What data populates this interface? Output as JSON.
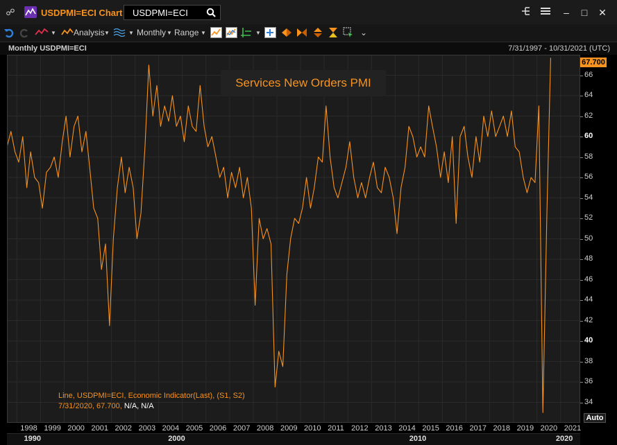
{
  "app": {
    "title": "USDPMI=ECI Chart",
    "search_value": "USDPMI=ECI"
  },
  "toolbar": {
    "analysis_label": "Analysis",
    "interval_label": "Monthly",
    "range_label": "Range"
  },
  "chart_header": {
    "left": "Monthly USDPMI=ECI",
    "right": "7/31/1997 - 10/31/2021 (UTC)"
  },
  "last_value_badge": "67.700",
  "auto_button": "Auto",
  "legend": {
    "line1": "Line, USDPMI=ECI, Economic Indicator(Last), (S1, S2)",
    "line2_date_value": "7/31/2020, 67.700,",
    "line2_na": "N/A, N/A"
  },
  "colors": {
    "accent": "#f7931e",
    "background": "#000000",
    "grid": "#2a2a2a"
  },
  "chart_data": {
    "type": "line",
    "title": "Services New Orders PMI",
    "series": [
      {
        "name": "USDPMI=ECI",
        "color": "#f7931e"
      }
    ],
    "ylim": [
      32,
      68
    ],
    "yticks": [
      "66",
      "64",
      "62",
      "60",
      "58",
      "56",
      "54",
      "52",
      "50",
      "48",
      "46",
      "44",
      "42",
      "40",
      "38",
      "36",
      "34"
    ],
    "ytick_bold": [
      "60",
      "40"
    ],
    "xlim": [
      1997.58,
      2021.83
    ],
    "xticks": [
      "1998",
      "1999",
      "2000",
      "2001",
      "2002",
      "2003",
      "2004",
      "2005",
      "2006",
      "2007",
      "2008",
      "2009",
      "2010",
      "2011",
      "2012",
      "2013",
      "2014",
      "2015",
      "2016",
      "2017",
      "2018",
      "2019",
      "2020",
      "2021"
    ],
    "decade_labels": [
      {
        "label": "1990",
        "year": 1998.3
      },
      {
        "label": "2000",
        "year": 2004.4
      },
      {
        "label": "2010",
        "year": 2014.6
      },
      {
        "label": "2020",
        "year": 2020.8
      }
    ],
    "points": [
      [
        1997.58,
        59.0
      ],
      [
        1997.75,
        60.5
      ],
      [
        1997.92,
        58.5
      ],
      [
        1998.08,
        57.5
      ],
      [
        1998.25,
        60.0
      ],
      [
        1998.42,
        55.0
      ],
      [
        1998.58,
        58.5
      ],
      [
        1998.75,
        56.0
      ],
      [
        1998.92,
        55.5
      ],
      [
        1999.08,
        53.0
      ],
      [
        1999.25,
        56.5
      ],
      [
        1999.42,
        57.0
      ],
      [
        1999.58,
        58.0
      ],
      [
        1999.75,
        56.0
      ],
      [
        1999.92,
        59.5
      ],
      [
        2000.08,
        62.0
      ],
      [
        2000.25,
        58.0
      ],
      [
        2000.42,
        61.0
      ],
      [
        2000.58,
        62.0
      ],
      [
        2000.75,
        58.5
      ],
      [
        2000.92,
        60.5
      ],
      [
        2001.08,
        57.0
      ],
      [
        2001.25,
        53.0
      ],
      [
        2001.42,
        52.0
      ],
      [
        2001.58,
        47.0
      ],
      [
        2001.75,
        49.5
      ],
      [
        2001.92,
        41.5
      ],
      [
        2002.08,
        50.0
      ],
      [
        2002.25,
        55.0
      ],
      [
        2002.42,
        58.0
      ],
      [
        2002.58,
        54.5
      ],
      [
        2002.75,
        57.0
      ],
      [
        2002.92,
        55.0
      ],
      [
        2003.08,
        50.0
      ],
      [
        2003.25,
        52.5
      ],
      [
        2003.42,
        59.0
      ],
      [
        2003.58,
        67.0
      ],
      [
        2003.75,
        62.0
      ],
      [
        2003.92,
        65.0
      ],
      [
        2004.08,
        61.0
      ],
      [
        2004.25,
        63.0
      ],
      [
        2004.42,
        61.5
      ],
      [
        2004.58,
        64.0
      ],
      [
        2004.75,
        61.0
      ],
      [
        2004.92,
        62.0
      ],
      [
        2005.08,
        59.5
      ],
      [
        2005.25,
        63.0
      ],
      [
        2005.42,
        61.0
      ],
      [
        2005.58,
        60.5
      ],
      [
        2005.75,
        65.0
      ],
      [
        2005.92,
        61.0
      ],
      [
        2006.08,
        59.0
      ],
      [
        2006.25,
        60.0
      ],
      [
        2006.42,
        58.0
      ],
      [
        2006.58,
        56.0
      ],
      [
        2006.75,
        57.0
      ],
      [
        2006.92,
        54.0
      ],
      [
        2007.08,
        56.5
      ],
      [
        2007.25,
        55.0
      ],
      [
        2007.42,
        57.0
      ],
      [
        2007.58,
        54.0
      ],
      [
        2007.75,
        56.0
      ],
      [
        2007.92,
        53.0
      ],
      [
        2008.08,
        43.5
      ],
      [
        2008.25,
        52.0
      ],
      [
        2008.42,
        50.0
      ],
      [
        2008.58,
        51.0
      ],
      [
        2008.75,
        49.5
      ],
      [
        2008.92,
        35.5
      ],
      [
        2009.08,
        39.0
      ],
      [
        2009.25,
        37.5
      ],
      [
        2009.42,
        46.5
      ],
      [
        2009.58,
        50.0
      ],
      [
        2009.75,
        52.0
      ],
      [
        2009.92,
        51.5
      ],
      [
        2010.08,
        53.0
      ],
      [
        2010.25,
        56.0
      ],
      [
        2010.42,
        53.0
      ],
      [
        2010.58,
        55.0
      ],
      [
        2010.75,
        58.0
      ],
      [
        2010.92,
        57.5
      ],
      [
        2011.08,
        63.0
      ],
      [
        2011.25,
        58.0
      ],
      [
        2011.42,
        55.0
      ],
      [
        2011.58,
        54.0
      ],
      [
        2011.75,
        55.5
      ],
      [
        2011.92,
        57.0
      ],
      [
        2012.08,
        59.5
      ],
      [
        2012.25,
        56.0
      ],
      [
        2012.42,
        54.0
      ],
      [
        2012.58,
        55.5
      ],
      [
        2012.75,
        54.0
      ],
      [
        2012.92,
        56.0
      ],
      [
        2013.08,
        57.5
      ],
      [
        2013.25,
        55.0
      ],
      [
        2013.42,
        54.5
      ],
      [
        2013.58,
        57.0
      ],
      [
        2013.75,
        56.0
      ],
      [
        2013.92,
        54.0
      ],
      [
        2014.08,
        50.5
      ],
      [
        2014.25,
        55.0
      ],
      [
        2014.42,
        57.0
      ],
      [
        2014.58,
        61.0
      ],
      [
        2014.75,
        60.0
      ],
      [
        2014.92,
        58.0
      ],
      [
        2015.08,
        59.0
      ],
      [
        2015.25,
        58.0
      ],
      [
        2015.42,
        63.0
      ],
      [
        2015.58,
        61.0
      ],
      [
        2015.75,
        59.0
      ],
      [
        2015.92,
        56.0
      ],
      [
        2016.08,
        58.5
      ],
      [
        2016.25,
        55.5
      ],
      [
        2016.42,
        60.0
      ],
      [
        2016.58,
        51.5
      ],
      [
        2016.75,
        60.0
      ],
      [
        2016.92,
        61.0
      ],
      [
        2017.08,
        58.0
      ],
      [
        2017.25,
        56.0
      ],
      [
        2017.42,
        60.0
      ],
      [
        2017.58,
        57.5
      ],
      [
        2017.75,
        62.0
      ],
      [
        2017.92,
        60.0
      ],
      [
        2018.08,
        62.5
      ],
      [
        2018.25,
        60.0
      ],
      [
        2018.42,
        61.0
      ],
      [
        2018.58,
        62.0
      ],
      [
        2018.75,
        60.0
      ],
      [
        2018.92,
        62.5
      ],
      [
        2019.08,
        59.0
      ],
      [
        2019.25,
        58.5
      ],
      [
        2019.42,
        56.0
      ],
      [
        2019.58,
        54.5
      ],
      [
        2019.75,
        56.0
      ],
      [
        2019.92,
        55.5
      ],
      [
        2020.08,
        63.0
      ],
      [
        2020.25,
        33.0
      ],
      [
        2020.42,
        52.5
      ],
      [
        2020.58,
        67.7
      ]
    ]
  }
}
